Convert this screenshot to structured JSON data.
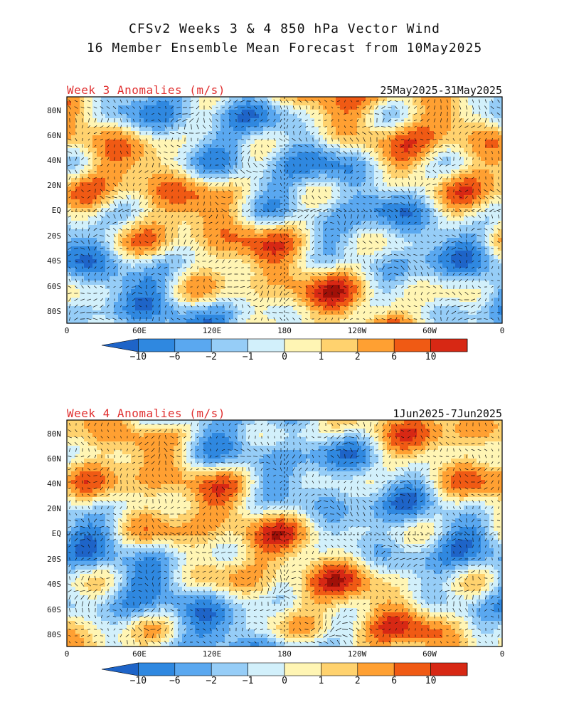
{
  "title": {
    "line1": "CFSv2 Weeks 3 & 4 850 hPa Vector Wind",
    "line2": "16 Member Ensemble Mean Forecast from 10May2025"
  },
  "panels": [
    {
      "label": "Week 3 Anomalies (m/s)",
      "dates": "25May2025-31May2025"
    },
    {
      "label": "Week 4 Anomalies (m/s)",
      "dates": "1Jun2025-7Jun2025"
    }
  ],
  "lat_ticks": [
    "80N",
    "60N",
    "40N",
    "20N",
    "EQ",
    "20S",
    "40S",
    "60S",
    "80S"
  ],
  "lon_ticks": [
    "0",
    "60E",
    "120E",
    "180",
    "120W",
    "60W",
    "0"
  ],
  "colorbar": {
    "levels": [
      "-10",
      "-6",
      "-2",
      "-1",
      "0",
      "1",
      "2",
      "6",
      "10"
    ],
    "colors": [
      "#1e64c8",
      "#2f88e0",
      "#5aa8f0",
      "#96cdf7",
      "#d2f0fb",
      "#fff5b4",
      "#ffd26e",
      "#ffa032",
      "#f05a14",
      "#d72814",
      "#a01008"
    ]
  }
}
